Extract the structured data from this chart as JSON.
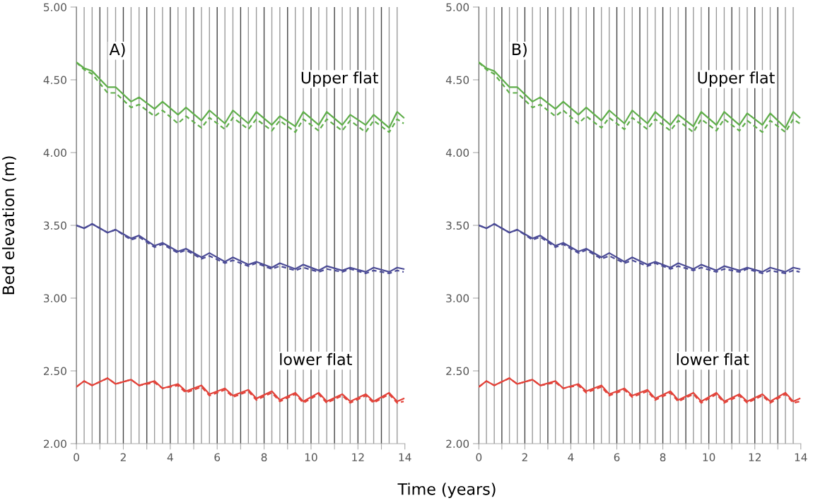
{
  "chart_data": [
    {
      "type": "line",
      "ylabel": "Bed elevation (m)",
      "xlabel": "Time (years)",
      "annotations": [
        "A)",
        "Upper flat",
        "lower flat"
      ],
      "x": [
        0,
        0.33,
        0.67,
        1.33,
        1.67,
        2.33,
        2.67,
        3.33,
        3.67,
        4.33,
        4.67,
        5.33,
        5.67,
        6.33,
        6.67,
        7.33,
        7.67,
        8.33,
        8.67,
        9.33,
        9.67,
        10.33,
        10.67,
        11.33,
        11.67,
        12.33,
        12.67,
        13.33,
        13.67,
        13.95
      ],
      "xlim": [
        0,
        14
      ],
      "ylim": [
        2,
        5
      ],
      "xticks": [
        0,
        {
          "value": 1,
          "label": null
        },
        2,
        {
          "value": 3,
          "label": null
        },
        4,
        {
          "value": 5,
          "label": null
        },
        6,
        {
          "value": 7,
          "label": null
        },
        8,
        {
          "value": 9,
          "label": null
        },
        10,
        {
          "value": 11,
          "label": null
        },
        12,
        {
          "value": 13,
          "label": null
        },
        14
      ],
      "yticks": [
        {
          "value": 2,
          "label": "2.00"
        },
        {
          "value": 2.5,
          "label": "2.50"
        },
        {
          "value": 3,
          "label": "3.00"
        },
        {
          "value": 3.5,
          "label": "3.50"
        },
        {
          "value": 4,
          "label": "4.00"
        },
        {
          "value": 4.5,
          "label": "4.50"
        },
        {
          "value": 5,
          "label": "5.00"
        }
      ],
      "grid": false,
      "legend": false,
      "marker": "none",
      "series": [
        {
          "color": "#5fae4a",
          "line_style": "solid",
          "values": [
            4.62,
            4.58,
            4.56,
            4.45,
            4.45,
            4.35,
            4.38,
            4.3,
            4.35,
            4.26,
            4.31,
            4.22,
            4.29,
            4.2,
            4.29,
            4.2,
            4.28,
            4.19,
            4.25,
            4.18,
            4.28,
            4.19,
            4.28,
            4.19,
            4.26,
            4.19,
            4.26,
            4.17,
            4.28,
            4.24
          ]
        },
        {
          "color": "#5fae4a",
          "line_style": "dashed",
          "values": [
            4.62,
            4.57,
            4.54,
            4.41,
            4.41,
            4.31,
            4.33,
            4.25,
            4.29,
            4.2,
            4.25,
            4.17,
            4.24,
            4.16,
            4.24,
            4.16,
            4.23,
            4.15,
            4.22,
            4.14,
            4.23,
            4.15,
            4.23,
            4.15,
            4.22,
            4.14,
            4.22,
            4.14,
            4.23,
            4.2
          ]
        },
        {
          "color": "#4b4b96",
          "line_style": "solid",
          "values": [
            3.5,
            3.48,
            3.51,
            3.45,
            3.47,
            3.41,
            3.43,
            3.36,
            3.38,
            3.32,
            3.34,
            3.28,
            3.31,
            3.25,
            3.28,
            3.23,
            3.25,
            3.21,
            3.24,
            3.2,
            3.23,
            3.19,
            3.22,
            3.19,
            3.21,
            3.18,
            3.21,
            3.18,
            3.21,
            3.2
          ]
        },
        {
          "color": "#4b4b96",
          "line_style": "dashed",
          "values": [
            3.5,
            3.48,
            3.51,
            3.45,
            3.47,
            3.4,
            3.42,
            3.35,
            3.37,
            3.31,
            3.33,
            3.27,
            3.29,
            3.24,
            3.26,
            3.22,
            3.24,
            3.2,
            3.22,
            3.19,
            3.21,
            3.18,
            3.2,
            3.18,
            3.2,
            3.17,
            3.19,
            3.17,
            3.19,
            3.18
          ]
        },
        {
          "color": "#e2433a",
          "line_style": "solid",
          "values": [
            2.39,
            2.43,
            2.4,
            2.45,
            2.41,
            2.44,
            2.4,
            2.43,
            2.38,
            2.41,
            2.36,
            2.4,
            2.34,
            2.38,
            2.33,
            2.37,
            2.31,
            2.36,
            2.3,
            2.35,
            2.29,
            2.35,
            2.29,
            2.34,
            2.29,
            2.34,
            2.29,
            2.35,
            2.29,
            2.31
          ]
        },
        {
          "color": "#e2433a",
          "line_style": "dashed",
          "values": [
            2.39,
            2.43,
            2.4,
            2.45,
            2.41,
            2.44,
            2.4,
            2.42,
            2.38,
            2.4,
            2.35,
            2.39,
            2.33,
            2.37,
            2.32,
            2.36,
            2.3,
            2.35,
            2.29,
            2.34,
            2.28,
            2.34,
            2.28,
            2.33,
            2.28,
            2.33,
            2.28,
            2.34,
            2.28,
            2.29
          ]
        }
      ],
      "ref_lines": [
        {
          "axis": "x",
          "value": 0.33,
          "color": "#9a9a9a"
        },
        {
          "axis": "x",
          "value": 0.67,
          "color": "#9a9a9a"
        },
        {
          "axis": "x",
          "value": 1,
          "color": "#444444"
        },
        {
          "axis": "x",
          "value": 1.33,
          "color": "#9a9a9a"
        },
        {
          "axis": "x",
          "value": 1.67,
          "color": "#9a9a9a"
        },
        {
          "axis": "x",
          "value": 2,
          "color": "#444444"
        },
        {
          "axis": "x",
          "value": 2.33,
          "color": "#9a9a9a"
        },
        {
          "axis": "x",
          "value": 2.67,
          "color": "#9a9a9a"
        },
        {
          "axis": "x",
          "value": 3,
          "color": "#444444"
        },
        {
          "axis": "x",
          "value": 3.33,
          "color": "#9a9a9a"
        },
        {
          "axis": "x",
          "value": 3.67,
          "color": "#9a9a9a"
        },
        {
          "axis": "x",
          "value": 4,
          "color": "#444444"
        },
        {
          "axis": "x",
          "value": 4.33,
          "color": "#9a9a9a"
        },
        {
          "axis": "x",
          "value": 4.67,
          "color": "#9a9a9a"
        },
        {
          "axis": "x",
          "value": 5,
          "color": "#444444"
        },
        {
          "axis": "x",
          "value": 5.33,
          "color": "#9a9a9a"
        },
        {
          "axis": "x",
          "value": 5.67,
          "color": "#9a9a9a"
        },
        {
          "axis": "x",
          "value": 6,
          "color": "#444444"
        },
        {
          "axis": "x",
          "value": 6.33,
          "color": "#9a9a9a"
        },
        {
          "axis": "x",
          "value": 6.67,
          "color": "#9a9a9a"
        },
        {
          "axis": "x",
          "value": 7,
          "color": "#444444"
        },
        {
          "axis": "x",
          "value": 7.33,
          "color": "#9a9a9a"
        },
        {
          "axis": "x",
          "value": 7.67,
          "color": "#9a9a9a"
        },
        {
          "axis": "x",
          "value": 8,
          "color": "#444444"
        },
        {
          "axis": "x",
          "value": 8.33,
          "color": "#9a9a9a"
        },
        {
          "axis": "x",
          "value": 8.67,
          "color": "#9a9a9a"
        },
        {
          "axis": "x",
          "value": 9,
          "color": "#444444"
        },
        {
          "axis": "x",
          "value": 9.33,
          "color": "#9a9a9a"
        },
        {
          "axis": "x",
          "value": 9.67,
          "color": "#9a9a9a"
        },
        {
          "axis": "x",
          "value": 10,
          "color": "#444444"
        },
        {
          "axis": "x",
          "value": 10.33,
          "color": "#9a9a9a"
        },
        {
          "axis": "x",
          "value": 10.67,
          "color": "#9a9a9a"
        },
        {
          "axis": "x",
          "value": 11,
          "color": "#444444"
        },
        {
          "axis": "x",
          "value": 11.33,
          "color": "#9a9a9a"
        },
        {
          "axis": "x",
          "value": 11.67,
          "color": "#9a9a9a"
        },
        {
          "axis": "x",
          "value": 12,
          "color": "#444444"
        },
        {
          "axis": "x",
          "value": 12.33,
          "color": "#9a9a9a"
        },
        {
          "axis": "x",
          "value": 12.67,
          "color": "#9a9a9a"
        },
        {
          "axis": "x",
          "value": 13,
          "color": "#444444"
        },
        {
          "axis": "x",
          "value": 13.33,
          "color": "#9a9a9a"
        },
        {
          "axis": "x",
          "value": 13.67,
          "color": "#9a9a9a"
        }
      ]
    },
    {
      "type": "line",
      "annotations": [
        "B)",
        "Upper flat",
        "lower flat"
      ],
      "x": [
        0,
        0.33,
        0.67,
        1.33,
        1.67,
        2.33,
        2.67,
        3.33,
        3.67,
        4.33,
        4.67,
        5.33,
        5.67,
        6.33,
        6.67,
        7.33,
        7.67,
        8.33,
        8.67,
        9.33,
        9.67,
        10.33,
        10.67,
        11.33,
        11.67,
        12.33,
        12.67,
        13.33,
        13.67,
        13.95
      ],
      "xlim": [
        0,
        14
      ],
      "ylim": [
        2,
        5
      ],
      "xticks": [
        0,
        {
          "value": 1,
          "label": null
        },
        2,
        {
          "value": 3,
          "label": null
        },
        4,
        {
          "value": 5,
          "label": null
        },
        6,
        {
          "value": 7,
          "label": null
        },
        8,
        {
          "value": 9,
          "label": null
        },
        10,
        {
          "value": 11,
          "label": null
        },
        12,
        {
          "value": 13,
          "label": null
        },
        14
      ],
      "yticks": [
        {
          "value": 2,
          "label": "2.00"
        },
        {
          "value": 2.5,
          "label": "2.50"
        },
        {
          "value": 3,
          "label": "3.00"
        },
        {
          "value": 3.5,
          "label": "3.50"
        },
        {
          "value": 4,
          "label": "4.00"
        },
        {
          "value": 4.5,
          "label": "4.50"
        },
        {
          "value": 5,
          "label": "5.00"
        }
      ],
      "grid": false,
      "legend": false,
      "marker": "none",
      "series": [
        {
          "color": "#5fae4a",
          "line_style": "solid",
          "values": [
            4.62,
            4.58,
            4.56,
            4.45,
            4.45,
            4.35,
            4.38,
            4.3,
            4.35,
            4.26,
            4.31,
            4.22,
            4.29,
            4.2,
            4.29,
            4.2,
            4.28,
            4.19,
            4.26,
            4.18,
            4.28,
            4.19,
            4.28,
            4.19,
            4.27,
            4.19,
            4.27,
            4.17,
            4.28,
            4.24
          ]
        },
        {
          "color": "#5fae4a",
          "line_style": "dashed",
          "values": [
            4.62,
            4.57,
            4.54,
            4.41,
            4.41,
            4.31,
            4.33,
            4.25,
            4.29,
            4.2,
            4.25,
            4.17,
            4.24,
            4.16,
            4.24,
            4.16,
            4.23,
            4.15,
            4.22,
            4.14,
            4.23,
            4.15,
            4.23,
            4.15,
            4.22,
            4.14,
            4.22,
            4.14,
            4.23,
            4.2
          ]
        },
        {
          "color": "#4b4b96",
          "line_style": "solid",
          "values": [
            3.5,
            3.48,
            3.51,
            3.45,
            3.47,
            3.41,
            3.43,
            3.36,
            3.38,
            3.32,
            3.34,
            3.28,
            3.31,
            3.25,
            3.28,
            3.23,
            3.25,
            3.21,
            3.24,
            3.2,
            3.23,
            3.19,
            3.22,
            3.19,
            3.21,
            3.18,
            3.21,
            3.18,
            3.21,
            3.2
          ]
        },
        {
          "color": "#4b4b96",
          "line_style": "dashed",
          "values": [
            3.5,
            3.48,
            3.51,
            3.45,
            3.47,
            3.4,
            3.42,
            3.35,
            3.37,
            3.31,
            3.33,
            3.27,
            3.29,
            3.24,
            3.26,
            3.22,
            3.24,
            3.2,
            3.22,
            3.19,
            3.21,
            3.18,
            3.2,
            3.18,
            3.2,
            3.17,
            3.19,
            3.17,
            3.19,
            3.18
          ]
        },
        {
          "color": "#e2433a",
          "line_style": "solid",
          "values": [
            2.39,
            2.43,
            2.4,
            2.45,
            2.41,
            2.44,
            2.4,
            2.43,
            2.38,
            2.41,
            2.36,
            2.4,
            2.34,
            2.38,
            2.33,
            2.37,
            2.31,
            2.36,
            2.3,
            2.35,
            2.29,
            2.35,
            2.29,
            2.34,
            2.29,
            2.34,
            2.29,
            2.35,
            2.29,
            2.31
          ]
        },
        {
          "color": "#e2433a",
          "line_style": "dashed",
          "values": [
            2.39,
            2.43,
            2.4,
            2.45,
            2.41,
            2.44,
            2.4,
            2.42,
            2.38,
            2.4,
            2.35,
            2.39,
            2.33,
            2.37,
            2.32,
            2.36,
            2.3,
            2.35,
            2.29,
            2.34,
            2.28,
            2.34,
            2.28,
            2.33,
            2.28,
            2.33,
            2.28,
            2.34,
            2.28,
            2.29
          ]
        }
      ],
      "ref_lines": [
        {
          "axis": "x",
          "value": 0.33,
          "color": "#9a9a9a"
        },
        {
          "axis": "x",
          "value": 0.67,
          "color": "#9a9a9a"
        },
        {
          "axis": "x",
          "value": 1,
          "color": "#444444"
        },
        {
          "axis": "x",
          "value": 1.33,
          "color": "#9a9a9a"
        },
        {
          "axis": "x",
          "value": 1.67,
          "color": "#9a9a9a"
        },
        {
          "axis": "x",
          "value": 2,
          "color": "#444444"
        },
        {
          "axis": "x",
          "value": 2.33,
          "color": "#9a9a9a"
        },
        {
          "axis": "x",
          "value": 2.67,
          "color": "#9a9a9a"
        },
        {
          "axis": "x",
          "value": 3,
          "color": "#444444"
        },
        {
          "axis": "x",
          "value": 3.33,
          "color": "#9a9a9a"
        },
        {
          "axis": "x",
          "value": 3.67,
          "color": "#9a9a9a"
        },
        {
          "axis": "x",
          "value": 4,
          "color": "#444444"
        },
        {
          "axis": "x",
          "value": 4.33,
          "color": "#9a9a9a"
        },
        {
          "axis": "x",
          "value": 4.67,
          "color": "#9a9a9a"
        },
        {
          "axis": "x",
          "value": 5,
          "color": "#444444"
        },
        {
          "axis": "x",
          "value": 5.33,
          "color": "#9a9a9a"
        },
        {
          "axis": "x",
          "value": 5.67,
          "color": "#9a9a9a"
        },
        {
          "axis": "x",
          "value": 6,
          "color": "#444444"
        },
        {
          "axis": "x",
          "value": 6.33,
          "color": "#9a9a9a"
        },
        {
          "axis": "x",
          "value": 6.67,
          "color": "#9a9a9a"
        },
        {
          "axis": "x",
          "value": 7,
          "color": "#444444"
        },
        {
          "axis": "x",
          "value": 7.33,
          "color": "#9a9a9a"
        },
        {
          "axis": "x",
          "value": 7.67,
          "color": "#9a9a9a"
        },
        {
          "axis": "x",
          "value": 8,
          "color": "#444444"
        },
        {
          "axis": "x",
          "value": 8.33,
          "color": "#9a9a9a"
        },
        {
          "axis": "x",
          "value": 8.67,
          "color": "#9a9a9a"
        },
        {
          "axis": "x",
          "value": 9,
          "color": "#444444"
        },
        {
          "axis": "x",
          "value": 9.33,
          "color": "#9a9a9a"
        },
        {
          "axis": "x",
          "value": 9.67,
          "color": "#9a9a9a"
        },
        {
          "axis": "x",
          "value": 10,
          "color": "#444444"
        },
        {
          "axis": "x",
          "value": 10.33,
          "color": "#9a9a9a"
        },
        {
          "axis": "x",
          "value": 10.67,
          "color": "#9a9a9a"
        },
        {
          "axis": "x",
          "value": 11,
          "color": "#444444"
        },
        {
          "axis": "x",
          "value": 11.33,
          "color": "#9a9a9a"
        },
        {
          "axis": "x",
          "value": 11.67,
          "color": "#9a9a9a"
        },
        {
          "axis": "x",
          "value": 12,
          "color": "#444444"
        },
        {
          "axis": "x",
          "value": 12.33,
          "color": "#9a9a9a"
        },
        {
          "axis": "x",
          "value": 12.67,
          "color": "#9a9a9a"
        },
        {
          "axis": "x",
          "value": 13,
          "color": "#444444"
        },
        {
          "axis": "x",
          "value": 13.33,
          "color": "#9a9a9a"
        },
        {
          "axis": "x",
          "value": 13.67,
          "color": "#9a9a9a"
        }
      ]
    }
  ]
}
